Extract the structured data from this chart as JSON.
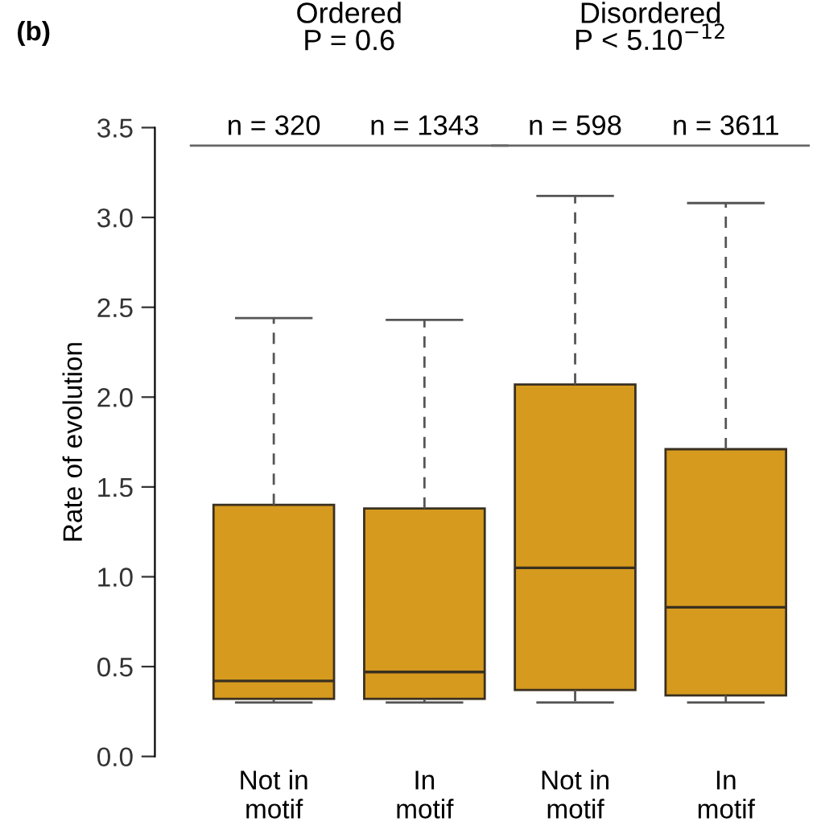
{
  "chart_data": {
    "type": "box",
    "ylabel": "Rate of evolution",
    "categories": [
      "Not in\nmotif",
      "In\nmotif",
      "Not in\nmotif",
      "In\nmotif"
    ],
    "series": [
      {
        "color": "#d69a1e",
        "boxes": [
          {
            "low": 0.3,
            "q1": 0.32,
            "median": 0.42,
            "q3": 1.4,
            "high": 2.44
          },
          {
            "low": 0.3,
            "q1": 0.32,
            "median": 0.47,
            "q3": 1.38,
            "high": 2.43
          },
          {
            "low": 0.3,
            "q1": 0.37,
            "median": 1.05,
            "q3": 2.07,
            "high": 3.12
          },
          {
            "low": 0.3,
            "q1": 0.34,
            "median": 0.83,
            "q3": 1.71,
            "high": 3.08
          }
        ]
      }
    ],
    "ylim": [
      0,
      3.5
    ],
    "yticks": [
      {
        "value": 0,
        "label": "0.0"
      },
      0.5,
      {
        "value": 1,
        "label": "1.0"
      },
      1.5,
      {
        "value": 2,
        "label": "2.0"
      },
      2.5,
      {
        "value": 3,
        "label": "3.0"
      },
      3.5
    ],
    "grid": false,
    "annotations": [
      "(b)",
      "Ordered\nP = 0.6",
      "Disordered\nP < 5.10$^{−12}$",
      "n = 320",
      "n = 1343",
      "n = 598",
      "n = 3611"
    ]
  }
}
